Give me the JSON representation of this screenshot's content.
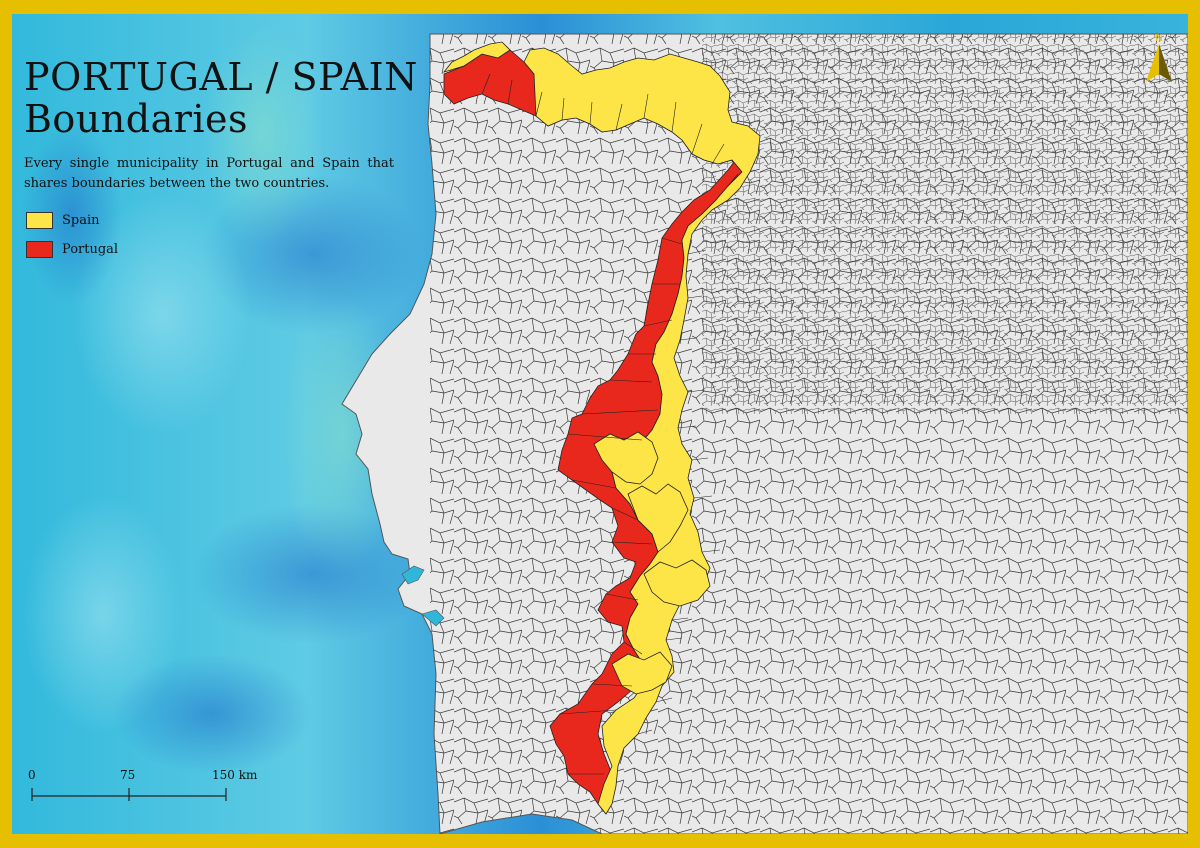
{
  "title_line1": "PORTUGAL / SPAIN",
  "title_line2": "Boundaries",
  "subtitle": "Every single municipality in Portugal and Spain that shares boundaries between the two countries.",
  "legend": [
    {
      "label": "Spain",
      "color": "#fde547"
    },
    {
      "label": "Portugal",
      "color": "#e8281c"
    }
  ],
  "scale": {
    "labels": [
      "0",
      "75",
      "150 km"
    ]
  },
  "north_label": "N",
  "colors": {
    "frame": "#e6bf00",
    "sea": "#2fb6d8",
    "land": "#e9e9e9",
    "border_lines": "#333333",
    "spain_highlight": "#fde547",
    "portugal_highlight": "#e8281c"
  }
}
